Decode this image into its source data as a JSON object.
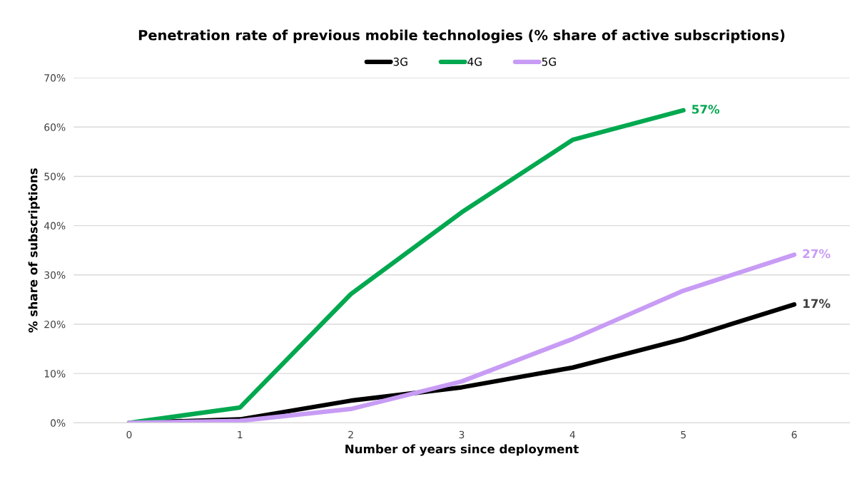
{
  "chart_data": {
    "type": "line",
    "title": "Penetration rate of previous mobile technologies (% share of active subscriptions)",
    "xlabel": "Number of years since deployment",
    "ylabel": "% share of subscriptions",
    "categories": [
      "0",
      "1",
      "2",
      "3",
      "4",
      "5",
      "6"
    ],
    "series": [
      {
        "name": "3G",
        "color": "#000000",
        "values": [
          0,
          0.7,
          4.5,
          7.2,
          11.2,
          17.0,
          24.0
        ]
      },
      {
        "name": "4G",
        "color": "#00a84f",
        "values": [
          0,
          3.1,
          26.1,
          42.7,
          57.4,
          63.4,
          null
        ]
      },
      {
        "name": "5G",
        "color": "#c89cf5",
        "values": [
          0,
          0.4,
          2.8,
          8.4,
          17.0,
          26.8,
          34.1
        ]
      }
    ],
    "annotations": [
      {
        "text": "17%",
        "x": "6",
        "y": 24.0
      },
      {
        "text": "57%",
        "x": "5",
        "y": 63.4
      },
      {
        "text": "27%",
        "x": "6",
        "y": 34.1
      }
    ],
    "ylim": [
      0,
      70
    ],
    "yticks": [
      {
        "value": 0,
        "label": "0%"
      },
      {
        "value": 10,
        "label": "10%"
      },
      {
        "value": 20,
        "label": "20%"
      },
      {
        "value": 30,
        "label": "30%"
      },
      {
        "value": 40,
        "label": "40%"
      },
      {
        "value": 50,
        "label": "50%"
      },
      {
        "value": 60,
        "label": "60%"
      },
      {
        "value": 70,
        "label": "70%"
      }
    ],
    "grid": "y",
    "legend": "top",
    "marker": "none",
    "line_style": "solid"
  }
}
